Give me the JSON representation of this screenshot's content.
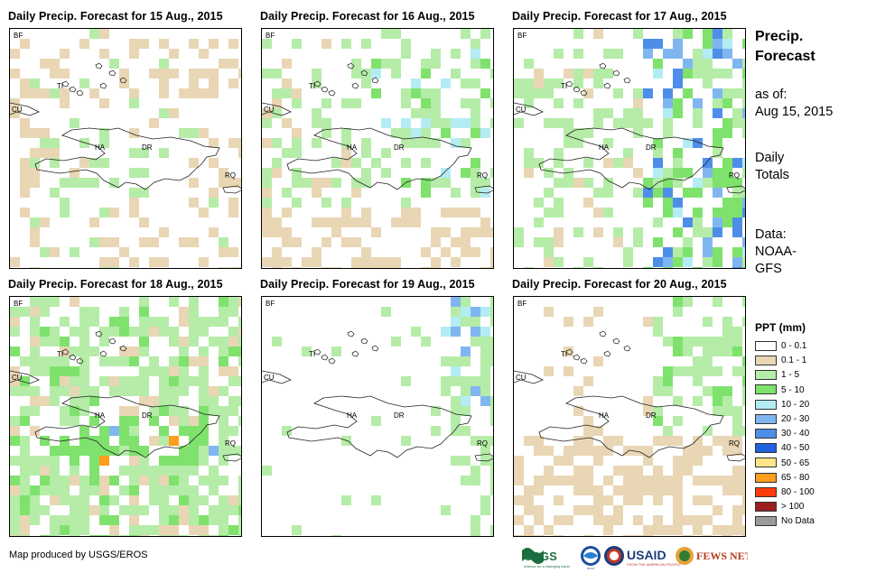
{
  "panels": [
    {
      "title": "Daily Precip. Forecast for 15 Aug., 2015"
    },
    {
      "title": "Daily Precip. Forecast for 16 Aug., 2015"
    },
    {
      "title": "Daily Precip. Forecast for 17 Aug., 2015"
    },
    {
      "title": "Daily Precip. Forecast for 18 Aug., 2015"
    },
    {
      "title": "Daily Precip. Forecast for 19 Aug., 2015"
    },
    {
      "title": "Daily Precip. Forecast for 20 Aug., 2015"
    }
  ],
  "map_labels": {
    "bf": "BF",
    "ti": "TI",
    "cu": "CU",
    "ha": "HA",
    "dr": "DR",
    "rq": "RQ"
  },
  "info": {
    "title_line1": "Precip.",
    "title_line2": "Forecast",
    "asof_line1": "as of:",
    "asof_line2": "Aug 15, 2015",
    "daily_line1": "Daily",
    "daily_line2": "Totals",
    "data_line1": "Data:",
    "data_line2": "NOAA-",
    "data_line3": "GFS"
  },
  "legend": {
    "title": "PPT (mm)",
    "items": [
      {
        "label": "0 - 0.1",
        "color": "#ffffff"
      },
      {
        "label": "0.1 - 1",
        "color": "#e9d6b4"
      },
      {
        "label": "1 - 5",
        "color": "#b5eca8"
      },
      {
        "label": "5 - 10",
        "color": "#7fe26d"
      },
      {
        "label": "10 - 20",
        "color": "#b4ecf4"
      },
      {
        "label": "20 - 30",
        "color": "#80b6f0"
      },
      {
        "label": "30 - 40",
        "color": "#4f8ee8"
      },
      {
        "label": "40 - 50",
        "color": "#1f62e0"
      },
      {
        "label": "50 - 65",
        "color": "#ffe588"
      },
      {
        "label": "65 - 80",
        "color": "#ff9d1c"
      },
      {
        "label": "80 - 100",
        "color": "#ff3c0c"
      },
      {
        "label": "> 100",
        "color": "#9c1e1e"
      },
      {
        "label": "No Data",
        "color": "#9b9b9b"
      }
    ]
  },
  "footer": {
    "credit": "Map produced by USGS/EROS"
  },
  "logos": {
    "usgs": "USGS",
    "usgs_tag": "science for a changing world",
    "noaa": "NOAA",
    "usaid": "USAID",
    "usaid_tag": "FROM THE AMERICAN PEOPLE",
    "fewsnet": "FEWS NET"
  }
}
